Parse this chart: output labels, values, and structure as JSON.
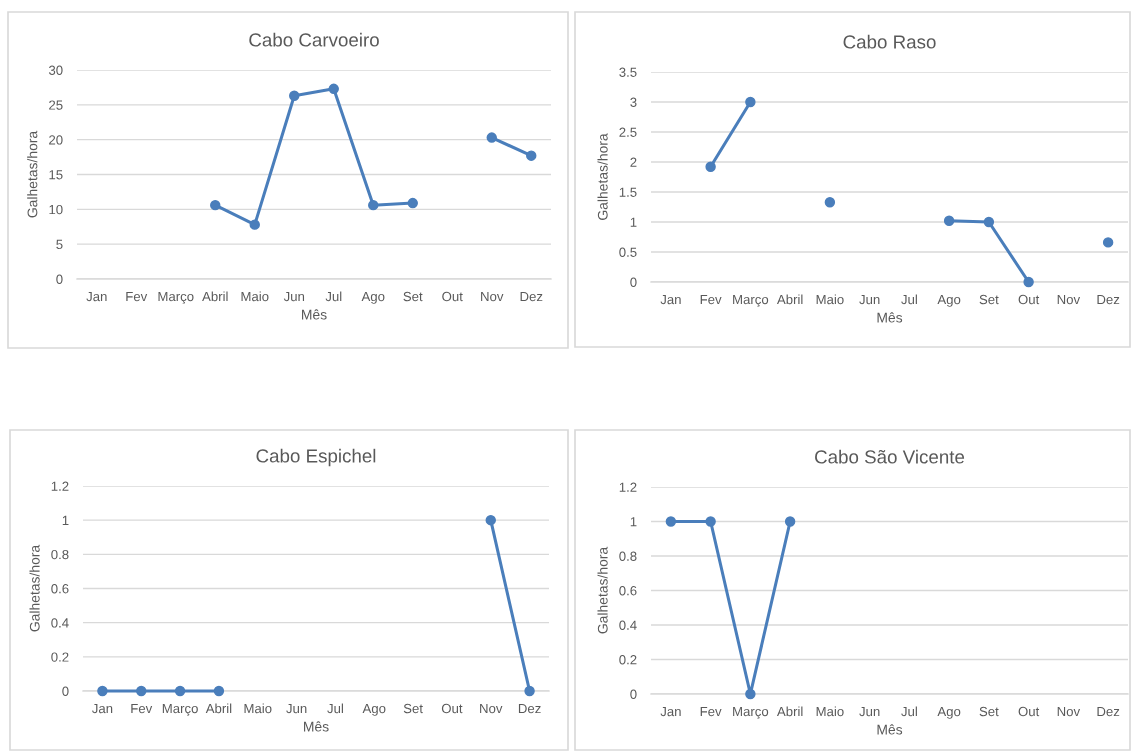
{
  "chart_data": [
    {
      "type": "line",
      "title": "Cabo Carvoeiro",
      "xlabel": "Mês",
      "ylabel": "Galhetas/hora",
      "categories": [
        "Jan",
        "Fev",
        "Março",
        "Abril",
        "Maio",
        "Jun",
        "Jul",
        "Ago",
        "Set",
        "Out",
        "Nov",
        "Dez"
      ],
      "series": [
        {
          "color": "#4a7ebb",
          "values": [
            null,
            null,
            null,
            10.6,
            7.8,
            26.3,
            27.3,
            10.6,
            10.9,
            null,
            20.3,
            17.7
          ]
        }
      ],
      "ylim": [
        0,
        30
      ],
      "yticks": [
        0,
        5,
        10,
        15,
        20,
        25,
        30
      ],
      "grid": "y",
      "marker": "circle"
    },
    {
      "type": "line",
      "title": "Cabo Raso",
      "xlabel": "Mês",
      "ylabel": "Galhetas/hora",
      "categories": [
        "Jan",
        "Fev",
        "Março",
        "Abril",
        "Maio",
        "Jun",
        "Jul",
        "Ago",
        "Set",
        "Out",
        "Nov",
        "Dez"
      ],
      "series": [
        {
          "color": "#4a7ebb",
          "values": [
            null,
            1.92,
            3.0,
            null,
            1.33,
            null,
            null,
            1.02,
            1.0,
            0,
            null,
            0.66
          ]
        }
      ],
      "ylim": [
        0,
        3.5
      ],
      "yticks": [
        0,
        0.5,
        1,
        1.5,
        2,
        2.5,
        3,
        3.5
      ],
      "grid": "y",
      "marker": "circle"
    },
    {
      "type": "line",
      "title": "Cabo Espichel",
      "xlabel": "Mês",
      "ylabel": "Galhetas/hora",
      "categories": [
        "Jan",
        "Fev",
        "Março",
        "Abril",
        "Maio",
        "Jun",
        "Jul",
        "Ago",
        "Set",
        "Out",
        "Nov",
        "Dez"
      ],
      "series": [
        {
          "color": "#4a7ebb",
          "values": [
            0,
            0,
            0,
            0,
            null,
            null,
            null,
            null,
            null,
            null,
            1,
            0
          ]
        }
      ],
      "ylim": [
        0,
        1.2
      ],
      "yticks": [
        0,
        0.2,
        0.4,
        0.6,
        0.8,
        1,
        1.2
      ],
      "grid": "y",
      "marker": "circle"
    },
    {
      "type": "line",
      "title": "Cabo São Vicente",
      "xlabel": "Mês",
      "ylabel": "Galhetas/hora",
      "categories": [
        "Jan",
        "Fev",
        "Março",
        "Abril",
        "Maio",
        "Jun",
        "Jul",
        "Ago",
        "Set",
        "Out",
        "Nov",
        "Dez"
      ],
      "series": [
        {
          "color": "#4a7ebb",
          "values": [
            1,
            1,
            0,
            1,
            null,
            null,
            null,
            null,
            null,
            null,
            null,
            null
          ]
        }
      ],
      "ylim": [
        0,
        1.2
      ],
      "yticks": [
        0,
        0.2,
        0.4,
        0.6,
        0.8,
        1,
        1.2
      ],
      "grid": "y",
      "marker": "circle"
    }
  ]
}
